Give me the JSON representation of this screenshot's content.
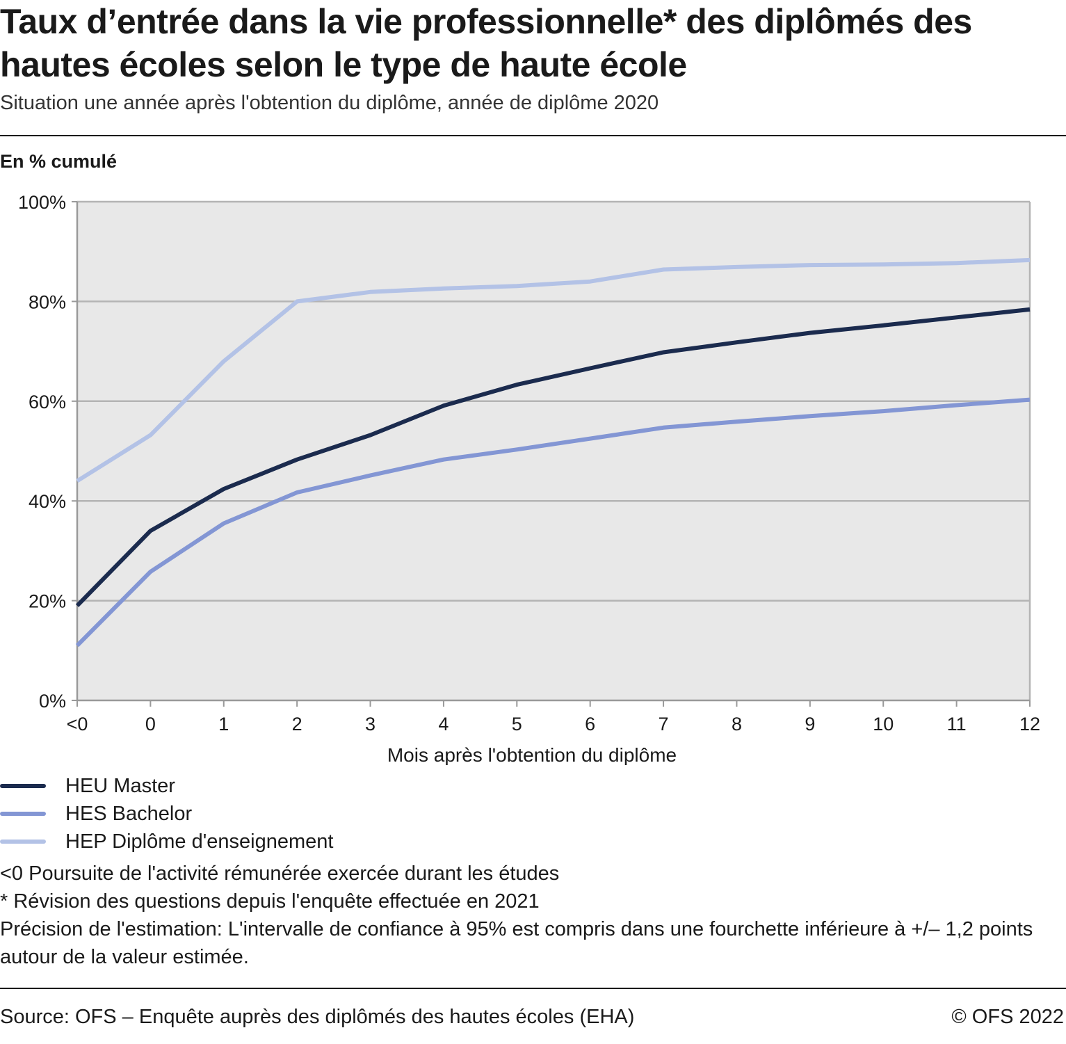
{
  "header": {
    "title": "Taux d’entrée dans la vie professionnelle* des diplômés des hautes écoles selon le type de haute école",
    "subtitle": "Situation une année après l'obtention du diplôme, année de diplôme 2020",
    "y_unit": "En % cumulé"
  },
  "colors": {
    "plot_background": "#e8e8e8",
    "grid": "#b4b4b4",
    "HEU Master": "#1b2b4e",
    "HES Bachelor": "#8396d4",
    "HEP Diplôme d'enseignement": "#b3c2e6"
  },
  "chart_data": {
    "type": "line",
    "title": "Taux d’entrée dans la vie professionnelle* des diplômés des hautes écoles selon le type de haute école",
    "subtitle": "Situation une année après l'obtention du diplôme, année de diplôme 2020",
    "xlabel": "Mois après l'obtention du diplôme",
    "ylabel": "En % cumulé",
    "categories": [
      "<0",
      "0",
      "1",
      "2",
      "3",
      "4",
      "5",
      "6",
      "7",
      "8",
      "9",
      "10",
      "11",
      "12"
    ],
    "yticks": [
      "0%",
      "20%",
      "40%",
      "60%",
      "80%",
      "100%"
    ],
    "ylim": [
      0,
      100
    ],
    "grid": true,
    "legend_position": "bottom-left",
    "series": [
      {
        "name": "HEU Master",
        "color": "#1b2b4e",
        "values": [
          19.0,
          34.0,
          42.4,
          48.3,
          53.2,
          59.1,
          63.3,
          66.6,
          69.8,
          71.8,
          73.7,
          75.2,
          76.8,
          78.4
        ]
      },
      {
        "name": "HES Bachelor",
        "color": "#8396d4",
        "values": [
          11.0,
          25.8,
          35.5,
          41.7,
          45.1,
          48.3,
          50.3,
          52.5,
          54.7,
          55.9,
          57.0,
          58.0,
          59.2,
          60.3
        ]
      },
      {
        "name": "HEP Diplôme d'enseignement",
        "color": "#b3c2e6",
        "values": [
          44.0,
          53.2,
          68.0,
          80.0,
          81.9,
          82.6,
          83.1,
          84.0,
          86.4,
          86.9,
          87.3,
          87.4,
          87.7,
          88.3
        ]
      }
    ]
  },
  "notes": [
    "<0 Poursuite de l'activité rémunérée exercée durant les études",
    "* Révision des questions depuis l'enquête effectuée en 2021",
    "Précision de l'estimation: L'intervalle de confiance à 95% est compris dans une fourchette inférieure à +/– 1,2 points autour de la valeur estimée."
  ],
  "footer": {
    "source": "Source: OFS – Enquête auprès des diplômés des hautes écoles (EHA)",
    "copyright": "© OFS 2022"
  }
}
